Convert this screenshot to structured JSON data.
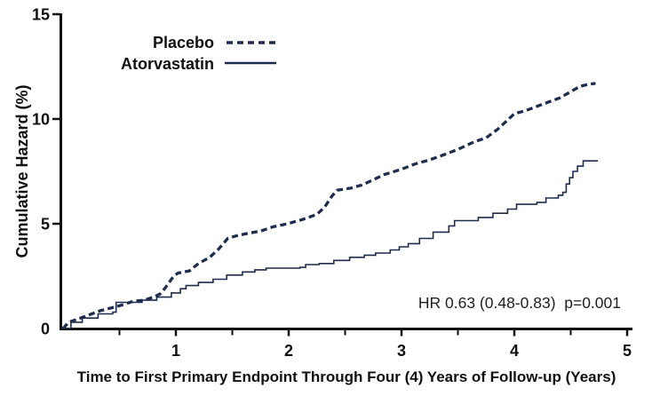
{
  "figure": {
    "annotation_display": "HR 0.63 (0.48-0.83)  p=0.001"
  },
  "chart_data": {
    "type": "line",
    "title": "",
    "xlabel": "Time to First Primary Endpoint Through Four (4) Years of Follow-up (Years)",
    "ylabel": "Cumulative Hazard (%)",
    "xlim": [
      0,
      5
    ],
    "ylim": [
      0,
      15
    ],
    "x_ticks": [
      1,
      2,
      3,
      4,
      5
    ],
    "x_minor_ticks": [
      0.5,
      1.5,
      2.5,
      3.5,
      4.5
    ],
    "y_ticks": [
      0,
      5,
      10,
      15
    ],
    "grid": "off",
    "legend_position": "inside-top-left",
    "annotation": "HR 0.63 (0.48-0.83) p=0.001",
    "colors": {
      "curve": "#1e2c4e",
      "axis": "#111111",
      "text": "#111111",
      "annotation": "#1f1f1f"
    },
    "series": [
      {
        "name": "Placebo",
        "style": "dashed",
        "points": [
          [
            0,
            0
          ],
          [
            0.05,
            0.3
          ],
          [
            0.13,
            0.45
          ],
          [
            0.23,
            0.65
          ],
          [
            0.33,
            0.85
          ],
          [
            0.44,
            1.0
          ],
          [
            0.54,
            1.15
          ],
          [
            0.62,
            1.3
          ],
          [
            0.72,
            1.35
          ],
          [
            0.8,
            1.5
          ],
          [
            0.86,
            1.65
          ],
          [
            0.9,
            1.9
          ],
          [
            0.94,
            2.2
          ],
          [
            0.98,
            2.5
          ],
          [
            1.02,
            2.65
          ],
          [
            1.12,
            2.75
          ],
          [
            1.2,
            3.1
          ],
          [
            1.3,
            3.4
          ],
          [
            1.38,
            3.8
          ],
          [
            1.46,
            4.3
          ],
          [
            1.55,
            4.45
          ],
          [
            1.65,
            4.55
          ],
          [
            1.75,
            4.65
          ],
          [
            1.86,
            4.85
          ],
          [
            1.99,
            5.0
          ],
          [
            2.12,
            5.2
          ],
          [
            2.25,
            5.45
          ],
          [
            2.32,
            5.8
          ],
          [
            2.38,
            6.3
          ],
          [
            2.43,
            6.6
          ],
          [
            2.55,
            6.7
          ],
          [
            2.65,
            6.85
          ],
          [
            2.75,
            7.1
          ],
          [
            2.85,
            7.35
          ],
          [
            3.0,
            7.6
          ],
          [
            3.12,
            7.85
          ],
          [
            3.25,
            8.05
          ],
          [
            3.38,
            8.3
          ],
          [
            3.5,
            8.55
          ],
          [
            3.64,
            8.9
          ],
          [
            3.75,
            9.1
          ],
          [
            3.85,
            9.5
          ],
          [
            3.93,
            9.9
          ],
          [
            4.0,
            10.25
          ],
          [
            4.1,
            10.4
          ],
          [
            4.2,
            10.6
          ],
          [
            4.3,
            10.8
          ],
          [
            4.4,
            11.0
          ],
          [
            4.5,
            11.3
          ],
          [
            4.58,
            11.55
          ],
          [
            4.65,
            11.65
          ],
          [
            4.72,
            11.7
          ]
        ]
      },
      {
        "name": "Atorvastatin",
        "style": "solid",
        "points": [
          [
            0,
            0
          ],
          [
            0.07,
            0.3
          ],
          [
            0.17,
            0.5
          ],
          [
            0.31,
            0.7
          ],
          [
            0.44,
            0.78
          ],
          [
            0.47,
            1.25
          ],
          [
            0.7,
            1.35
          ],
          [
            0.83,
            1.5
          ],
          [
            0.96,
            1.7
          ],
          [
            1.04,
            1.9
          ],
          [
            1.09,
            2.05
          ],
          [
            1.2,
            2.2
          ],
          [
            1.33,
            2.35
          ],
          [
            1.45,
            2.55
          ],
          [
            1.59,
            2.7
          ],
          [
            1.7,
            2.8
          ],
          [
            1.8,
            2.88
          ],
          [
            2.1,
            2.92
          ],
          [
            2.15,
            3.05
          ],
          [
            2.27,
            3.1
          ],
          [
            2.4,
            3.25
          ],
          [
            2.54,
            3.4
          ],
          [
            2.67,
            3.5
          ],
          [
            2.77,
            3.6
          ],
          [
            2.9,
            3.75
          ],
          [
            2.98,
            3.9
          ],
          [
            3.06,
            4.05
          ],
          [
            3.16,
            4.3
          ],
          [
            3.28,
            4.6
          ],
          [
            3.42,
            4.9
          ],
          [
            3.47,
            5.15
          ],
          [
            3.68,
            5.3
          ],
          [
            3.81,
            5.5
          ],
          [
            3.94,
            5.7
          ],
          [
            4.02,
            5.93
          ],
          [
            4.2,
            6.02
          ],
          [
            4.28,
            6.23
          ],
          [
            4.39,
            6.36
          ],
          [
            4.43,
            6.5
          ],
          [
            4.46,
            6.9
          ],
          [
            4.49,
            7.2
          ],
          [
            4.52,
            7.5
          ],
          [
            4.56,
            7.75
          ],
          [
            4.61,
            8.0
          ],
          [
            4.74,
            8.0
          ]
        ]
      }
    ]
  }
}
